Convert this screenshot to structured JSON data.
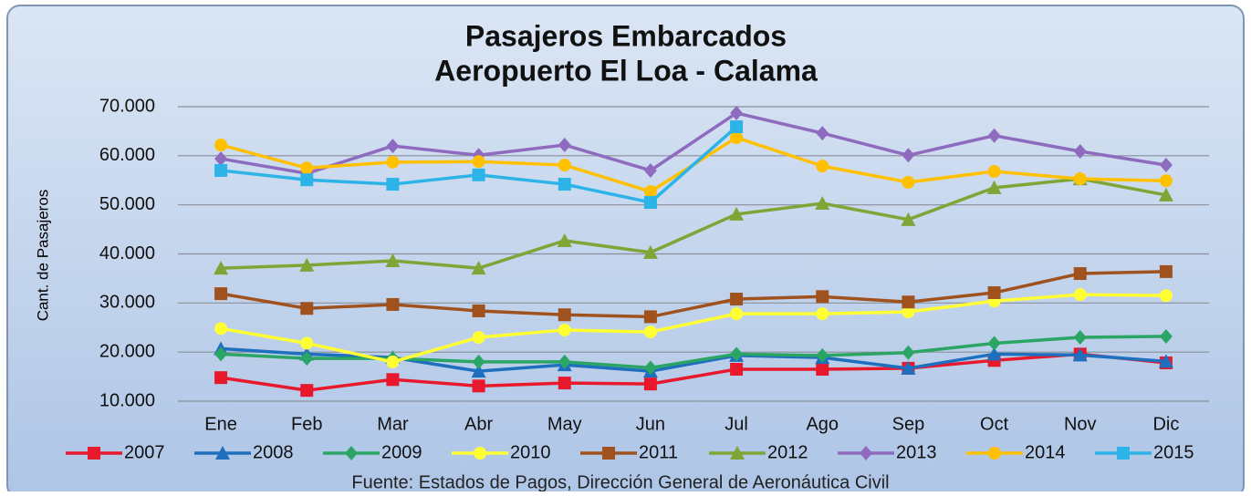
{
  "chart_data": {
    "type": "line",
    "title": "Pasajeros Embarcados",
    "subtitle": "Aeropuerto El Loa - Calama",
    "y_label": "Cant. de Pasajeros",
    "source": "Fuente: Estados de Pagos, Dirección General de Aeronáutica Civil",
    "categories": [
      "Ene",
      "Feb",
      "Mar",
      "Abr",
      "May",
      "Jun",
      "Jul",
      "Ago",
      "Sep",
      "Oct",
      "Nov",
      "Dic"
    ],
    "ylim": [
      10000,
      70000
    ],
    "yticks": [
      {
        "value": 10000,
        "label": "10.000"
      },
      {
        "value": 20000,
        "label": "20.000"
      },
      {
        "value": 30000,
        "label": "30.000"
      },
      {
        "value": 40000,
        "label": "40.000"
      },
      {
        "value": 50000,
        "label": "50.000"
      },
      {
        "value": 60000,
        "label": "60.000"
      },
      {
        "value": 70000,
        "label": "70.000"
      }
    ],
    "grid": true,
    "legend": "bottom",
    "series": [
      {
        "name": "2007",
        "color": "#e8192c",
        "marker": "square",
        "values": [
          14800,
          12200,
          14400,
          13100,
          13700,
          13500,
          16500,
          16500,
          16700,
          18300,
          19600,
          17800
        ]
      },
      {
        "name": "2008",
        "color": "#1f6fbf",
        "marker": "triangle",
        "values": [
          20700,
          19600,
          18900,
          16100,
          17400,
          16100,
          19300,
          18900,
          16700,
          19600,
          19400,
          18100
        ]
      },
      {
        "name": "2009",
        "color": "#2aa563",
        "marker": "diamond",
        "values": [
          19600,
          18700,
          18700,
          18000,
          18000,
          16800,
          19600,
          19300,
          19900,
          21800,
          23000,
          23200
        ]
      },
      {
        "name": "2010",
        "color": "#ffff33",
        "marker": "circle",
        "values": [
          24800,
          21800,
          18000,
          23000,
          24500,
          24100,
          27800,
          27800,
          28200,
          30400,
          31700,
          31500
        ]
      },
      {
        "name": "2011",
        "color": "#a0521e",
        "marker": "square",
        "values": [
          31900,
          28900,
          29700,
          28400,
          27600,
          27200,
          30800,
          31300,
          30200,
          32100,
          36000,
          36400
        ]
      },
      {
        "name": "2012",
        "color": "#7fa536",
        "marker": "triangle",
        "values": [
          37100,
          37700,
          38600,
          37100,
          42700,
          40300,
          48100,
          50300,
          47000,
          53500,
          55300,
          52000
        ]
      },
      {
        "name": "2013",
        "color": "#8e6bbf",
        "marker": "diamond",
        "values": [
          59400,
          56400,
          62000,
          60100,
          62200,
          57000,
          68700,
          64600,
          60100,
          64100,
          60900,
          58100
        ]
      },
      {
        "name": "2014",
        "color": "#ffc000",
        "marker": "circle",
        "values": [
          62200,
          57500,
          58700,
          58800,
          58100,
          52700,
          63700,
          57900,
          54600,
          56800,
          55300,
          54900
        ]
      },
      {
        "name": "2015",
        "color": "#2cb3e8",
        "marker": "square",
        "values": [
          57000,
          55100,
          54200,
          56100,
          54200,
          50500,
          65900,
          null,
          null,
          null,
          null,
          null
        ]
      }
    ]
  }
}
